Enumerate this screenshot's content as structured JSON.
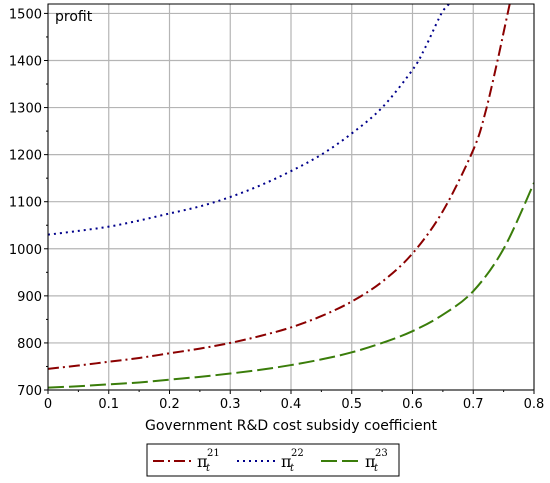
{
  "chart_data": {
    "type": "line",
    "title": "",
    "xlabel": "Government R&D cost subsidy coefficient",
    "ylabel": "profit",
    "xlim": [
      0,
      0.8
    ],
    "ylim": [
      700,
      1520
    ],
    "x_ticks": [
      "0",
      "0.1",
      "0.2",
      "0.3",
      "0.4",
      "0.5",
      "0.6",
      "0.7",
      "0.8"
    ],
    "y_ticks": [
      "700",
      "800",
      "900",
      "1000",
      "1100",
      "1200",
      "1300",
      "1400",
      "1500"
    ],
    "grid": true,
    "legend_position": "bottom",
    "series": [
      {
        "name": "π_t^21",
        "symbol": "π",
        "sub": "t",
        "sup": "21",
        "color": "#8b0000",
        "dash": "dashdot",
        "x": [
          0,
          0.05,
          0.1,
          0.15,
          0.2,
          0.25,
          0.3,
          0.35,
          0.4,
          0.45,
          0.5,
          0.55,
          0.6,
          0.65,
          0.7,
          0.72,
          0.74,
          0.75,
          0.76
        ],
        "y": [
          745,
          752,
          760,
          768,
          778,
          788,
          800,
          815,
          833,
          857,
          888,
          930,
          990,
          1080,
          1210,
          1290,
          1400,
          1460,
          1520
        ]
      },
      {
        "name": "π_t^22",
        "symbol": "π",
        "sub": "t",
        "sup": "22",
        "color": "#00008b",
        "dash": "dot",
        "x": [
          0,
          0.05,
          0.1,
          0.15,
          0.2,
          0.25,
          0.3,
          0.35,
          0.4,
          0.45,
          0.5,
          0.55,
          0.6,
          0.62,
          0.64,
          0.65,
          0.66
        ],
        "y": [
          1030,
          1038,
          1047,
          1060,
          1075,
          1090,
          1110,
          1135,
          1165,
          1200,
          1245,
          1300,
          1380,
          1425,
          1480,
          1505,
          1520
        ]
      },
      {
        "name": "π_t^23",
        "symbol": "π",
        "sub": "t",
        "sup": "23",
        "color": "#3a7d0a",
        "dash": "longdash",
        "x": [
          0,
          0.05,
          0.1,
          0.15,
          0.2,
          0.25,
          0.3,
          0.35,
          0.4,
          0.45,
          0.5,
          0.55,
          0.6,
          0.65,
          0.7,
          0.75,
          0.8
        ],
        "y": [
          705,
          708,
          712,
          716,
          722,
          728,
          735,
          743,
          753,
          765,
          780,
          800,
          825,
          860,
          910,
          1000,
          1140
        ]
      }
    ]
  }
}
